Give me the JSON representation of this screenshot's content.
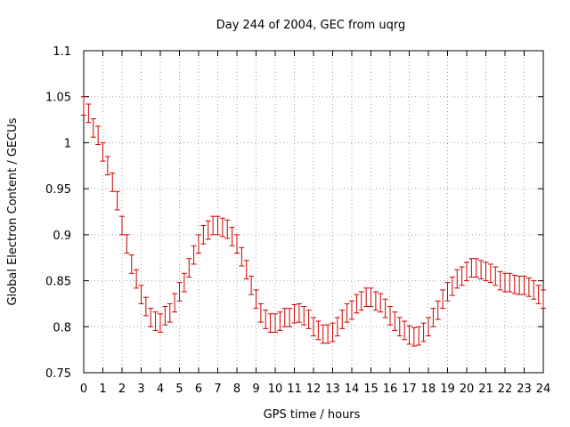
{
  "chart_data": {
    "type": "line",
    "title": "Day 244 of 2004, GEC from uqrg",
    "xlabel": "GPS time / hours",
    "ylabel": "Global Electron Content / GECUs",
    "xlim": [
      0,
      24
    ],
    "ylim": [
      0.75,
      1.1
    ],
    "xticks": [
      "0",
      "1",
      "2",
      "3",
      "4",
      "5",
      "6",
      "7",
      "8",
      "9",
      "10",
      "11",
      "12",
      "13",
      "14",
      "15",
      "16",
      "17",
      "18",
      "19",
      "20",
      "21",
      "22",
      "23",
      "24"
    ],
    "yticks": [
      "0.75",
      "0.8",
      "0.85",
      "0.9",
      "0.95",
      "1",
      "1.05",
      "1.1"
    ],
    "grid": true,
    "legend": "none",
    "error_bars": true,
    "error_half_width": 0.01,
    "color": "#cc0000",
    "series": [
      {
        "x": [
          0,
          0.25,
          0.5,
          0.75,
          1,
          1.25,
          1.5,
          1.75,
          2,
          2.25,
          2.5,
          2.75,
          3,
          3.25,
          3.5,
          3.75,
          4,
          4.25,
          4.5,
          4.75,
          5,
          5.25,
          5.5,
          5.75,
          6,
          6.25,
          6.5,
          6.75,
          7,
          7.25,
          7.5,
          7.75,
          8,
          8.25,
          8.5,
          8.75,
          9,
          9.25,
          9.5,
          9.75,
          10,
          10.25,
          10.5,
          10.75,
          11,
          11.25,
          11.5,
          11.75,
          12,
          12.25,
          12.5,
          12.75,
          13,
          13.25,
          13.5,
          13.75,
          14,
          14.25,
          14.5,
          14.75,
          15,
          15.25,
          15.5,
          15.75,
          16,
          16.25,
          16.5,
          16.75,
          17,
          17.25,
          17.5,
          17.75,
          18,
          18.25,
          18.5,
          18.75,
          19,
          19.25,
          19.5,
          19.75,
          20,
          20.25,
          20.5,
          20.75,
          21,
          21.25,
          21.5,
          21.75,
          22,
          22.25,
          22.5,
          22.75,
          23,
          23.25,
          23.5,
          23.75,
          24
        ],
        "y": [
          1.04,
          1.032,
          1.016,
          1.008,
          0.99,
          0.975,
          0.957,
          0.937,
          0.91,
          0.89,
          0.868,
          0.852,
          0.835,
          0.822,
          0.81,
          0.806,
          0.804,
          0.812,
          0.815,
          0.826,
          0.838,
          0.848,
          0.864,
          0.878,
          0.89,
          0.9,
          0.905,
          0.91,
          0.91,
          0.908,
          0.906,
          0.898,
          0.89,
          0.876,
          0.862,
          0.845,
          0.83,
          0.815,
          0.808,
          0.804,
          0.804,
          0.806,
          0.81,
          0.81,
          0.814,
          0.815,
          0.812,
          0.808,
          0.8,
          0.796,
          0.792,
          0.792,
          0.794,
          0.8,
          0.808,
          0.815,
          0.818,
          0.825,
          0.828,
          0.832,
          0.832,
          0.828,
          0.826,
          0.82,
          0.812,
          0.806,
          0.8,
          0.796,
          0.791,
          0.789,
          0.79,
          0.794,
          0.8,
          0.81,
          0.818,
          0.83,
          0.838,
          0.844,
          0.852,
          0.855,
          0.86,
          0.864,
          0.864,
          0.862,
          0.86,
          0.858,
          0.855,
          0.85,
          0.848,
          0.848,
          0.846,
          0.845,
          0.845,
          0.843,
          0.84,
          0.835,
          0.83
        ]
      }
    ]
  }
}
